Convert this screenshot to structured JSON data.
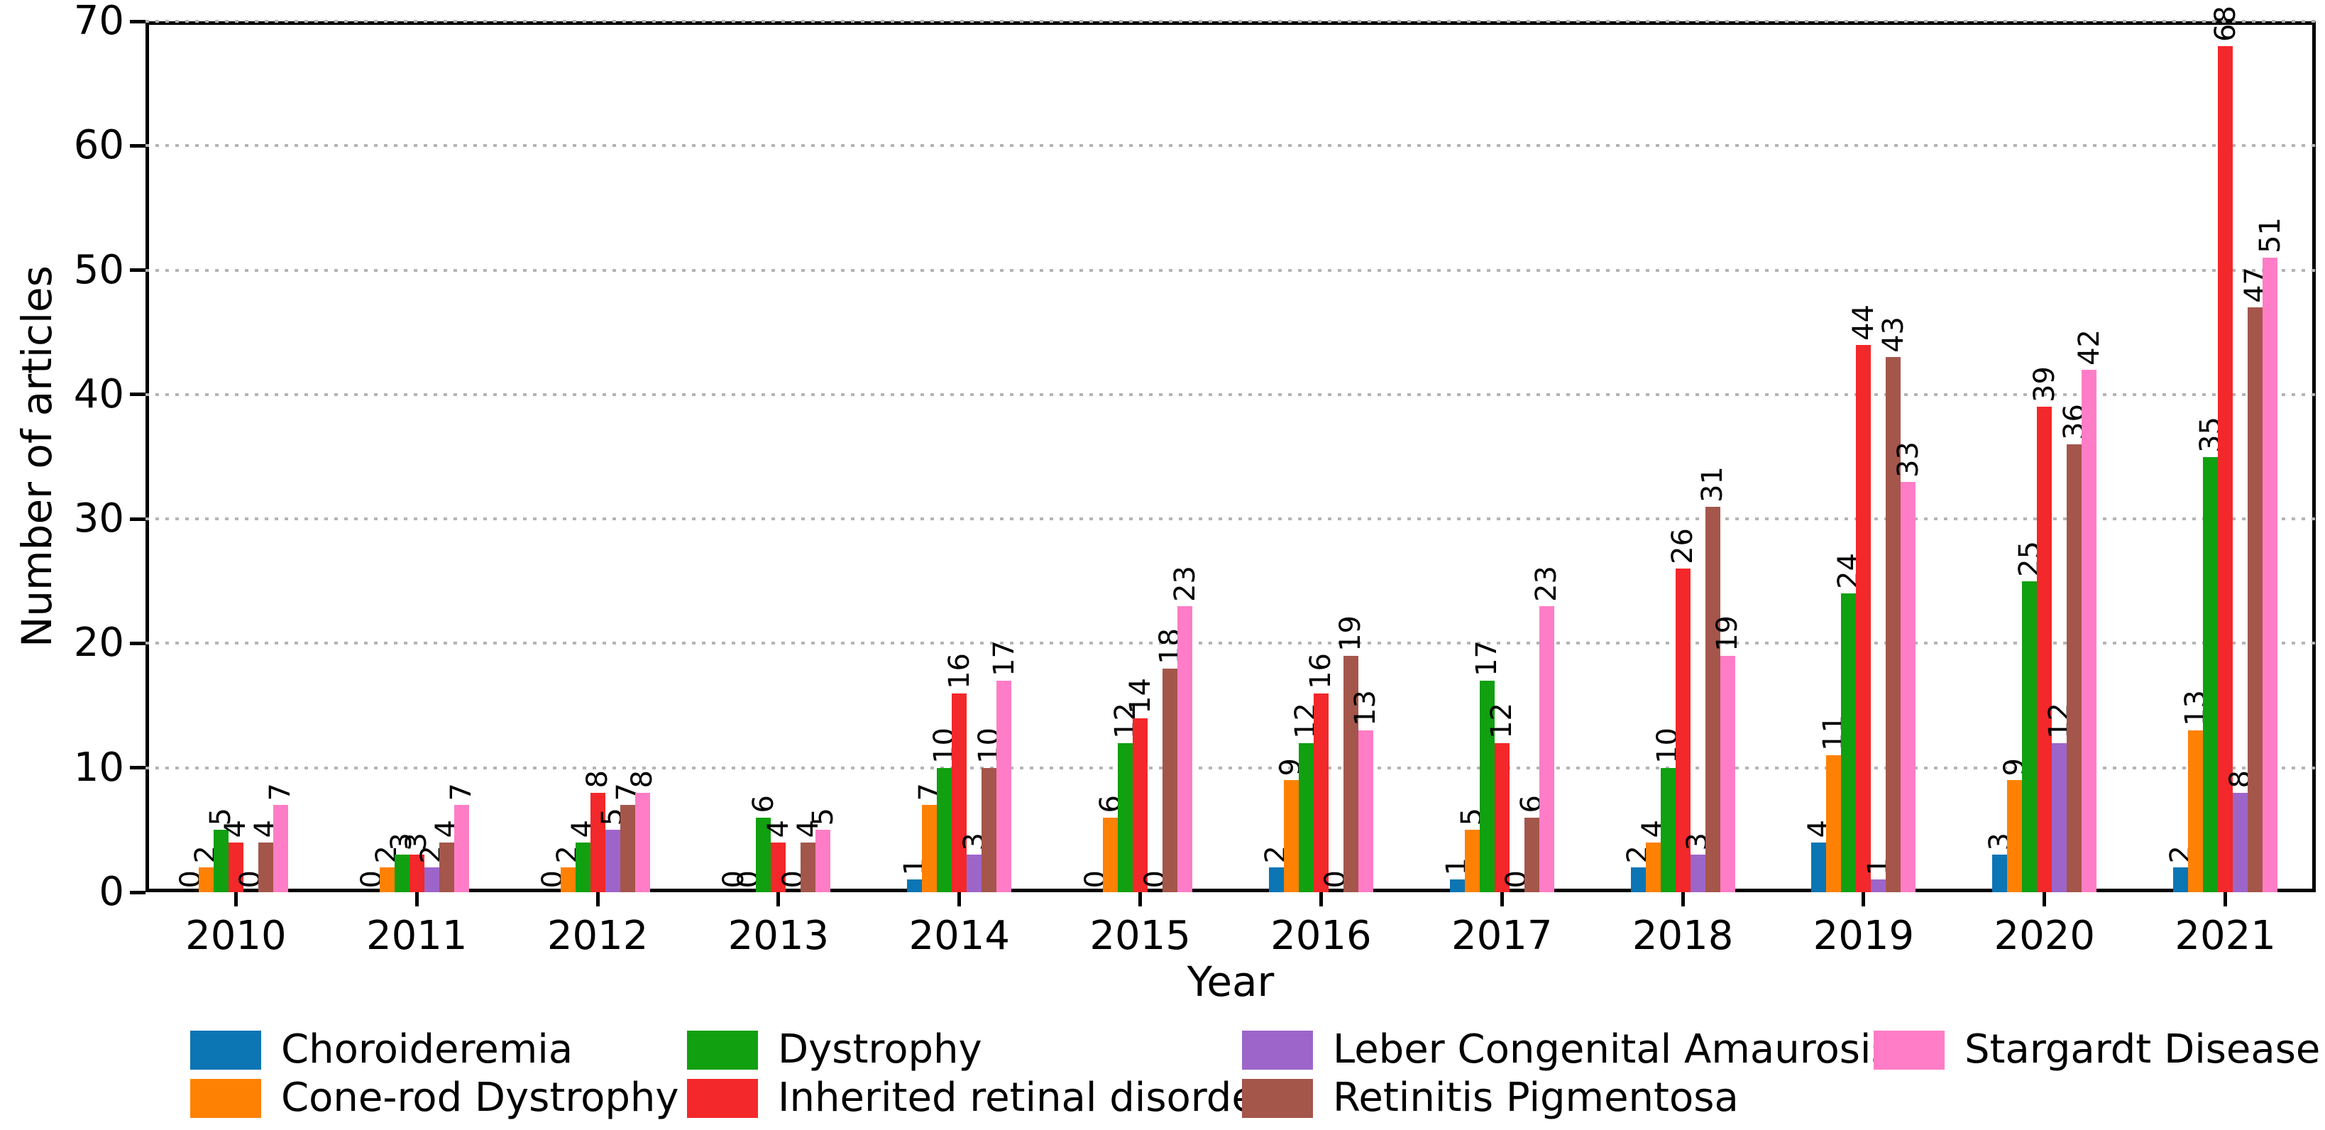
{
  "chart_data": {
    "type": "bar",
    "title": "",
    "xlabel": "Year",
    "ylabel": "Number of articles",
    "ylim": [
      0,
      70
    ],
    "yticks": [
      0,
      10,
      20,
      30,
      40,
      50,
      60,
      70
    ],
    "grid": "horizontal-dotted",
    "legend_position": "bottom",
    "bar_label_rotation": 90,
    "categories": [
      "2010",
      "2011",
      "2012",
      "2013",
      "2014",
      "2015",
      "2016",
      "2017",
      "2018",
      "2019",
      "2020",
      "2021"
    ],
    "series": [
      {
        "name": "Choroideremia",
        "color": "#0c75b4",
        "values": [
          0,
          0,
          0,
          0,
          1,
          0,
          2,
          1,
          2,
          4,
          3,
          2
        ]
      },
      {
        "name": "Cone-rod Dystrophy",
        "color": "#ff8104",
        "values": [
          2,
          2,
          2,
          0,
          7,
          6,
          9,
          5,
          4,
          11,
          9,
          13
        ]
      },
      {
        "name": "Dystrophy",
        "color": "#10a010",
        "values": [
          5,
          3,
          4,
          6,
          10,
          12,
          12,
          17,
          10,
          24,
          25,
          35
        ]
      },
      {
        "name": "Inherited retinal disorder",
        "color": "#f3282a",
        "values": [
          4,
          3,
          8,
          4,
          16,
          14,
          16,
          12,
          26,
          44,
          39,
          68
        ]
      },
      {
        "name": "Leber Congenital Amaurosis",
        "color": "#9d65c9",
        "values": [
          0,
          2,
          5,
          0,
          3,
          0,
          0,
          0,
          3,
          1,
          12,
          8
        ]
      },
      {
        "name": "Retinitis Pigmentosa",
        "color": "#a4564b",
        "values": [
          4,
          4,
          7,
          4,
          10,
          18,
          19,
          6,
          31,
          43,
          36,
          47
        ]
      },
      {
        "name": "Stargardt Disease",
        "color": "#ff7dc6",
        "values": [
          7,
          7,
          8,
          5,
          17,
          23,
          13,
          23,
          19,
          33,
          42,
          51
        ]
      }
    ],
    "legend_columns": [
      [
        0,
        1
      ],
      [
        2,
        3
      ],
      [
        4,
        5
      ],
      [
        6
      ]
    ]
  }
}
